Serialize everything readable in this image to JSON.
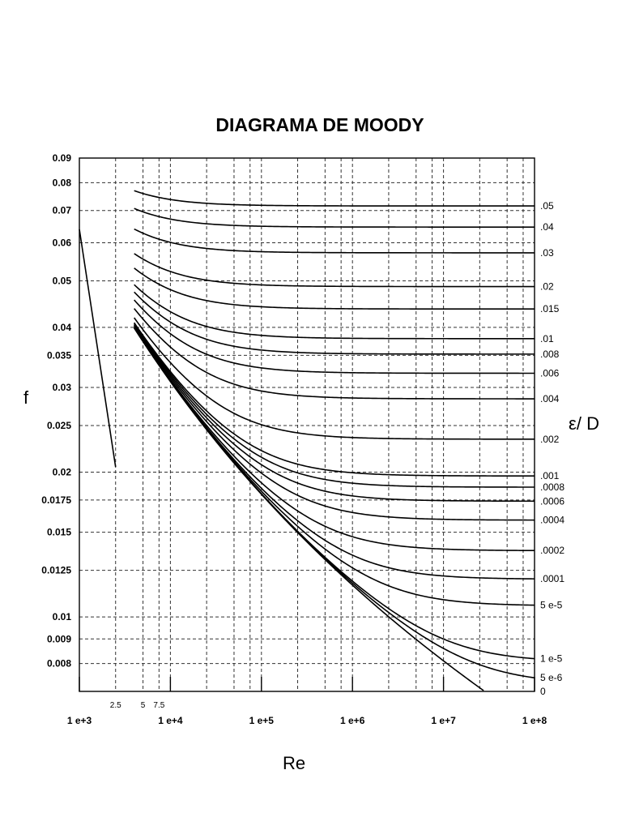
{
  "chart_data": {
    "type": "line",
    "title": "DIAGRAMA DE MOODY",
    "xlabel": "Re",
    "ylabel": "f",
    "right_label": "ε/ D",
    "x_scale": "log",
    "y_scale": "log",
    "xlim": [
      1000,
      100000000
    ],
    "ylim": [
      0.007,
      0.09
    ],
    "grid": true,
    "x_ticks": [
      {
        "value": 1000,
        "label": "1 e+3"
      },
      {
        "value": 10000,
        "label": "1 e+4"
      },
      {
        "value": 100000,
        "label": "1 e+5"
      },
      {
        "value": 1000000,
        "label": "1 e+6"
      },
      {
        "value": 10000000,
        "label": "1 e+7"
      },
      {
        "value": 100000000,
        "label": "1 e+8"
      }
    ],
    "x_minor_ticks": [
      {
        "value": 2500,
        "label": "2.5"
      },
      {
        "value": 5000,
        "label": "5"
      },
      {
        "value": 7500,
        "label": "7.5"
      }
    ],
    "y_ticks": [
      {
        "value": 0.09,
        "label": "0.09"
      },
      {
        "value": 0.08,
        "label": "0.08"
      },
      {
        "value": 0.07,
        "label": "0.07"
      },
      {
        "value": 0.06,
        "label": "0.06"
      },
      {
        "value": 0.05,
        "label": "0.05"
      },
      {
        "value": 0.04,
        "label": "0.04"
      },
      {
        "value": 0.035,
        "label": "0.035"
      },
      {
        "value": 0.03,
        "label": "0.03"
      },
      {
        "value": 0.025,
        "label": "0.025"
      },
      {
        "value": 0.02,
        "label": "0.02"
      },
      {
        "value": 0.0175,
        "label": "0.0175"
      },
      {
        "value": 0.015,
        "label": "0.015"
      },
      {
        "value": 0.0125,
        "label": "0.0125"
      },
      {
        "value": 0.01,
        "label": "0.01"
      },
      {
        "value": 0.009,
        "label": "0.009"
      },
      {
        "value": 0.008,
        "label": "0.008"
      }
    ],
    "laminar_line": {
      "x": [
        1000,
        2500
      ],
      "y": [
        0.064,
        0.0205
      ]
    },
    "turbulent_start_re": 4000,
    "series": [
      {
        "label": ".05",
        "roughness": 0.05
      },
      {
        "label": ".04",
        "roughness": 0.04
      },
      {
        "label": ".03",
        "roughness": 0.03
      },
      {
        "label": ".02",
        "roughness": 0.02
      },
      {
        "label": ".015",
        "roughness": 0.015
      },
      {
        "label": ".01",
        "roughness": 0.01
      },
      {
        "label": ".008",
        "roughness": 0.008
      },
      {
        "label": ".006",
        "roughness": 0.006
      },
      {
        "label": ".004",
        "roughness": 0.004
      },
      {
        "label": ".002",
        "roughness": 0.002
      },
      {
        "label": ".001",
        "roughness": 0.001
      },
      {
        "label": ".0008",
        "roughness": 0.0008
      },
      {
        "label": ".0006",
        "roughness": 0.0006
      },
      {
        "label": ".0004",
        "roughness": 0.0004
      },
      {
        "label": ".0002",
        "roughness": 0.0002
      },
      {
        "label": ".0001",
        "roughness": 0.0001
      },
      {
        "label": "5 e-5",
        "roughness": 5e-05
      },
      {
        "label": "1 e-5",
        "roughness": 1e-05
      },
      {
        "label": "5 e-6",
        "roughness": 5e-06
      },
      {
        "label": "0",
        "roughness": 0
      }
    ]
  }
}
